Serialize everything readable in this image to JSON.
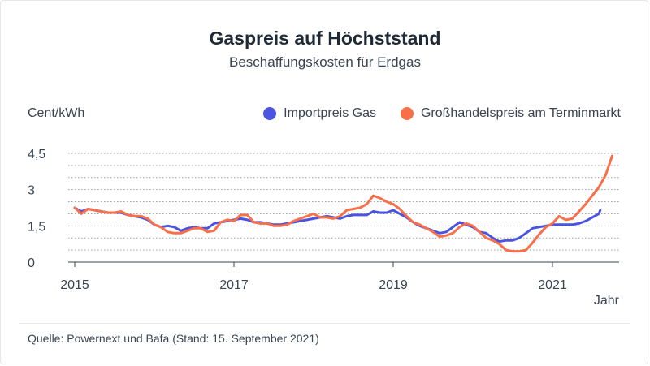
{
  "header": {
    "title": "Gaspreis auf Höchststand",
    "subtitle": "Beschaffungskosten für Erdgas"
  },
  "footer": {
    "source": "Quelle: Powernext und Bafa (Stand: 15. September 2021)"
  },
  "chart_data": {
    "type": "line",
    "title": "Gaspreis auf Höchststand",
    "subtitle": "Beschaffungskosten für Erdgas",
    "ylabel": "Cent/kWh",
    "xlabel": "Jahr",
    "ylim": [
      0,
      4.5
    ],
    "xlim": [
      2015.0,
      2021.85
    ],
    "yticks": [
      0,
      1.5,
      3,
      4.5
    ],
    "ytick_labels": [
      "0",
      "1,5",
      "3",
      "4,5"
    ],
    "xticks": [
      2015,
      2017,
      2019,
      2021
    ],
    "xtick_labels": [
      "2015",
      "2017",
      "2019",
      "2021"
    ],
    "grid": "horizontal dotted",
    "legend_placement": "top-right",
    "series": [
      {
        "name": "Importpreis Gas",
        "color": "#4a54e1",
        "points": [
          [
            2015.0,
            2.25
          ],
          [
            2015.083,
            2.1
          ],
          [
            2015.167,
            2.2
          ],
          [
            2015.25,
            2.15
          ],
          [
            2015.333,
            2.1
          ],
          [
            2015.417,
            2.05
          ],
          [
            2015.5,
            2.05
          ],
          [
            2015.583,
            2.05
          ],
          [
            2015.667,
            1.95
          ],
          [
            2015.75,
            1.9
          ],
          [
            2015.833,
            1.85
          ],
          [
            2015.917,
            1.75
          ],
          [
            2016.0,
            1.55
          ],
          [
            2016.083,
            1.45
          ],
          [
            2016.167,
            1.5
          ],
          [
            2016.25,
            1.45
          ],
          [
            2016.333,
            1.3
          ],
          [
            2016.417,
            1.4
          ],
          [
            2016.5,
            1.45
          ],
          [
            2016.583,
            1.4
          ],
          [
            2016.667,
            1.4
          ],
          [
            2016.75,
            1.6
          ],
          [
            2016.833,
            1.65
          ],
          [
            2016.917,
            1.7
          ],
          [
            2017.0,
            1.75
          ],
          [
            2017.083,
            1.8
          ],
          [
            2017.167,
            1.75
          ],
          [
            2017.25,
            1.65
          ],
          [
            2017.333,
            1.65
          ],
          [
            2017.417,
            1.6
          ],
          [
            2017.5,
            1.55
          ],
          [
            2017.583,
            1.55
          ],
          [
            2017.667,
            1.6
          ],
          [
            2017.75,
            1.65
          ],
          [
            2017.833,
            1.7
          ],
          [
            2017.917,
            1.75
          ],
          [
            2018.0,
            1.8
          ],
          [
            2018.083,
            1.85
          ],
          [
            2018.167,
            1.9
          ],
          [
            2018.25,
            1.85
          ],
          [
            2018.333,
            1.8
          ],
          [
            2018.417,
            1.9
          ],
          [
            2018.5,
            1.95
          ],
          [
            2018.583,
            1.95
          ],
          [
            2018.667,
            1.95
          ],
          [
            2018.75,
            2.1
          ],
          [
            2018.833,
            2.05
          ],
          [
            2018.917,
            2.05
          ],
          [
            2019.0,
            2.15
          ],
          [
            2019.083,
            2.0
          ],
          [
            2019.167,
            1.85
          ],
          [
            2019.25,
            1.65
          ],
          [
            2019.333,
            1.5
          ],
          [
            2019.417,
            1.4
          ],
          [
            2019.5,
            1.3
          ],
          [
            2019.583,
            1.2
          ],
          [
            2019.667,
            1.25
          ],
          [
            2019.75,
            1.45
          ],
          [
            2019.833,
            1.65
          ],
          [
            2019.917,
            1.55
          ],
          [
            2020.0,
            1.45
          ],
          [
            2020.083,
            1.25
          ],
          [
            2020.167,
            1.2
          ],
          [
            2020.25,
            1.0
          ],
          [
            2020.333,
            0.85
          ],
          [
            2020.417,
            0.9
          ],
          [
            2020.5,
            0.9
          ],
          [
            2020.583,
            1.0
          ],
          [
            2020.667,
            1.2
          ],
          [
            2020.75,
            1.4
          ],
          [
            2020.833,
            1.45
          ],
          [
            2020.917,
            1.5
          ],
          [
            2021.0,
            1.55
          ],
          [
            2021.083,
            1.55
          ],
          [
            2021.167,
            1.55
          ],
          [
            2021.25,
            1.55
          ],
          [
            2021.333,
            1.6
          ],
          [
            2021.417,
            1.7
          ],
          [
            2021.5,
            1.85
          ],
          [
            2021.583,
            2.0
          ],
          [
            2021.6,
            2.15
          ]
        ]
      },
      {
        "name": "Großhandelspreis am Terminmarkt",
        "color": "#f86f4a",
        "points": [
          [
            2015.0,
            2.25
          ],
          [
            2015.083,
            2.0
          ],
          [
            2015.167,
            2.2
          ],
          [
            2015.25,
            2.15
          ],
          [
            2015.333,
            2.1
          ],
          [
            2015.417,
            2.05
          ],
          [
            2015.5,
            2.05
          ],
          [
            2015.583,
            2.1
          ],
          [
            2015.667,
            1.95
          ],
          [
            2015.75,
            1.9
          ],
          [
            2015.833,
            1.9
          ],
          [
            2015.917,
            1.8
          ],
          [
            2016.0,
            1.55
          ],
          [
            2016.083,
            1.45
          ],
          [
            2016.167,
            1.25
          ],
          [
            2016.25,
            1.2
          ],
          [
            2016.333,
            1.2
          ],
          [
            2016.417,
            1.3
          ],
          [
            2016.5,
            1.4
          ],
          [
            2016.583,
            1.4
          ],
          [
            2016.667,
            1.25
          ],
          [
            2016.75,
            1.3
          ],
          [
            2016.833,
            1.65
          ],
          [
            2016.917,
            1.75
          ],
          [
            2017.0,
            1.7
          ],
          [
            2017.083,
            1.95
          ],
          [
            2017.167,
            1.95
          ],
          [
            2017.25,
            1.65
          ],
          [
            2017.333,
            1.6
          ],
          [
            2017.417,
            1.6
          ],
          [
            2017.5,
            1.5
          ],
          [
            2017.583,
            1.5
          ],
          [
            2017.667,
            1.55
          ],
          [
            2017.75,
            1.7
          ],
          [
            2017.833,
            1.8
          ],
          [
            2017.917,
            1.9
          ],
          [
            2018.0,
            2.0
          ],
          [
            2018.083,
            1.85
          ],
          [
            2018.167,
            1.85
          ],
          [
            2018.25,
            1.8
          ],
          [
            2018.333,
            1.9
          ],
          [
            2018.417,
            2.15
          ],
          [
            2018.5,
            2.2
          ],
          [
            2018.583,
            2.25
          ],
          [
            2018.667,
            2.4
          ],
          [
            2018.75,
            2.75
          ],
          [
            2018.833,
            2.65
          ],
          [
            2018.917,
            2.5
          ],
          [
            2019.0,
            2.4
          ],
          [
            2019.083,
            2.2
          ],
          [
            2019.167,
            1.9
          ],
          [
            2019.25,
            1.65
          ],
          [
            2019.333,
            1.55
          ],
          [
            2019.417,
            1.4
          ],
          [
            2019.5,
            1.25
          ],
          [
            2019.583,
            1.05
          ],
          [
            2019.667,
            1.1
          ],
          [
            2019.75,
            1.2
          ],
          [
            2019.833,
            1.45
          ],
          [
            2019.917,
            1.6
          ],
          [
            2020.0,
            1.5
          ],
          [
            2020.083,
            1.25
          ],
          [
            2020.167,
            1.0
          ],
          [
            2020.25,
            0.9
          ],
          [
            2020.333,
            0.75
          ],
          [
            2020.417,
            0.5
          ],
          [
            2020.5,
            0.45
          ],
          [
            2020.583,
            0.45
          ],
          [
            2020.667,
            0.5
          ],
          [
            2020.75,
            0.8
          ],
          [
            2020.833,
            1.15
          ],
          [
            2020.917,
            1.45
          ],
          [
            2021.0,
            1.6
          ],
          [
            2021.083,
            1.9
          ],
          [
            2021.167,
            1.75
          ],
          [
            2021.25,
            1.8
          ],
          [
            2021.333,
            2.1
          ],
          [
            2021.417,
            2.4
          ],
          [
            2021.5,
            2.75
          ],
          [
            2021.583,
            3.1
          ],
          [
            2021.667,
            3.6
          ],
          [
            2021.75,
            4.4
          ]
        ]
      }
    ]
  }
}
